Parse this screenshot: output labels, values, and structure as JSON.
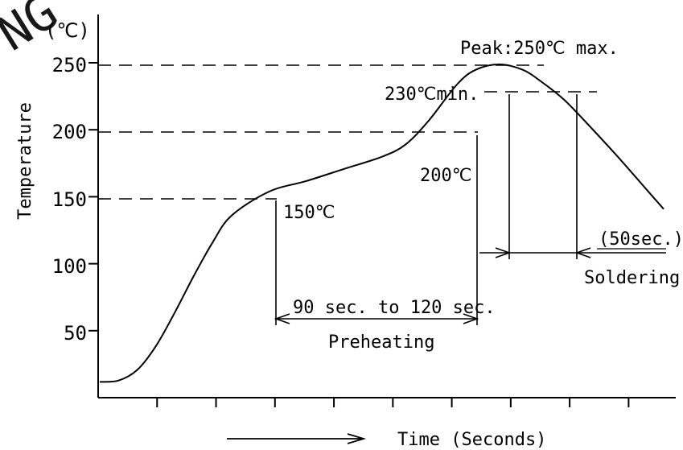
{
  "chart_data": {
    "type": "line",
    "title": "",
    "xlabel": "Time (Seconds)",
    "ylabel": "Temperature",
    "y_unit": "(℃)",
    "ylim": [
      0,
      300
    ],
    "yticks": [
      "250",
      "200",
      "150",
      "100",
      "50"
    ],
    "ytick_values": [
      250,
      200,
      150,
      100,
      50
    ],
    "x_tick_count": 9,
    "grid": false,
    "series": [
      {
        "x": [
          0,
          4,
          8,
          12,
          16,
          20,
          24,
          28,
          36,
          44,
          52,
          60,
          65,
          70,
          76,
          80,
          85,
          90,
          94,
          99,
          105,
          110,
          115,
          120
        ],
        "y": [
          13,
          14,
          22,
          40,
          65,
          92,
          117,
          137,
          155,
          163,
          172,
          181,
          190,
          208,
          235,
          246,
          250,
          246,
          237,
          223,
          201,
          182,
          162,
          142
        ]
      }
    ],
    "reference_levels": [
      250,
      230,
      200,
      150
    ],
    "annotations": {
      "peak": "Peak:250℃ max.",
      "min230": "230℃min.",
      "t200": "200℃",
      "t150": "150℃",
      "preheat_duration": "90 sec. to 120 sec.",
      "preheat": "Preheating",
      "solder_duration": "(50sec.)",
      "solder": "Soldering"
    },
    "watermark": "NG"
  }
}
